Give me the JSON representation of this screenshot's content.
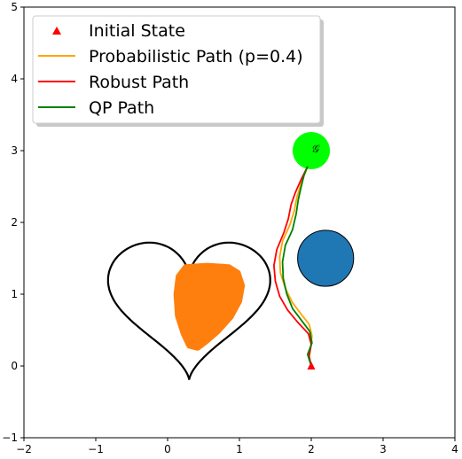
{
  "chart_data": {
    "type": "line",
    "xlim": [
      -2,
      4
    ],
    "ylim": [
      -1,
      5
    ],
    "x_ticks": [
      -2,
      -1,
      0,
      1,
      2,
      3,
      4
    ],
    "y_ticks": [
      -1,
      0,
      1,
      2,
      3,
      4,
      5
    ],
    "x_tick_labels": [
      "−2",
      "−1",
      "0",
      "1",
      "2",
      "3",
      "4"
    ],
    "y_tick_labels": [
      "−1",
      "0",
      "1",
      "2",
      "3",
      "4",
      "5"
    ],
    "grid": false,
    "legend_position": "top-left",
    "goal_label": "𝒢",
    "initial_state": {
      "name": "Initial State",
      "x": 2.0,
      "y": 0.0,
      "color": "#ff0000",
      "marker": "triangle"
    },
    "series": [
      {
        "name": "Probabilistic Path (p=0.4)",
        "color": "#ffa500",
        "points": [
          [
            2.0,
            0.0
          ],
          [
            1.97,
            0.12
          ],
          [
            1.99,
            0.25
          ],
          [
            2.01,
            0.42
          ],
          [
            1.97,
            0.58
          ],
          [
            1.86,
            0.72
          ],
          [
            1.74,
            0.88
          ],
          [
            1.64,
            1.08
          ],
          [
            1.57,
            1.3
          ],
          [
            1.56,
            1.52
          ],
          [
            1.6,
            1.74
          ],
          [
            1.7,
            1.96
          ],
          [
            1.76,
            2.15
          ],
          [
            1.8,
            2.35
          ],
          [
            1.86,
            2.55
          ],
          [
            1.95,
            2.78
          ]
        ]
      },
      {
        "name": "Robust Path",
        "color": "#ff0000",
        "points": [
          [
            2.0,
            0.0
          ],
          [
            1.97,
            0.14
          ],
          [
            2.0,
            0.3
          ],
          [
            1.96,
            0.45
          ],
          [
            1.82,
            0.6
          ],
          [
            1.67,
            0.78
          ],
          [
            1.56,
            0.97
          ],
          [
            1.5,
            1.18
          ],
          [
            1.48,
            1.4
          ],
          [
            1.52,
            1.62
          ],
          [
            1.62,
            1.86
          ],
          [
            1.68,
            2.05
          ],
          [
            1.72,
            2.25
          ],
          [
            1.78,
            2.42
          ],
          [
            1.86,
            2.6
          ],
          [
            1.95,
            2.78
          ]
        ]
      },
      {
        "name": "QP Path",
        "color": "#008000",
        "points": [
          [
            2.0,
            0.0
          ],
          [
            1.95,
            0.16
          ],
          [
            2.01,
            0.32
          ],
          [
            1.98,
            0.48
          ],
          [
            1.86,
            0.64
          ],
          [
            1.74,
            0.8
          ],
          [
            1.66,
            1.0
          ],
          [
            1.61,
            1.22
          ],
          [
            1.6,
            1.45
          ],
          [
            1.64,
            1.68
          ],
          [
            1.74,
            1.9
          ],
          [
            1.79,
            2.12
          ],
          [
            1.82,
            2.32
          ],
          [
            1.86,
            2.5
          ],
          [
            1.9,
            2.66
          ],
          [
            1.95,
            2.78
          ]
        ]
      }
    ],
    "obstacles": [
      {
        "name": "heart-obstacle",
        "type": "heart",
        "center": [
          0.3,
          0.93
        ],
        "scale": 0.105,
        "line_color": "#000000"
      },
      {
        "name": "uncertain-orange-region",
        "type": "blob",
        "color": "#ff7f0e",
        "points": [
          [
            0.25,
            1.38
          ],
          [
            0.55,
            1.4
          ],
          [
            0.85,
            1.38
          ],
          [
            0.98,
            1.3
          ],
          [
            1.04,
            1.12
          ],
          [
            1.0,
            0.9
          ],
          [
            0.88,
            0.68
          ],
          [
            0.7,
            0.48
          ],
          [
            0.55,
            0.35
          ],
          [
            0.42,
            0.25
          ],
          [
            0.3,
            0.28
          ],
          [
            0.22,
            0.45
          ],
          [
            0.14,
            0.7
          ],
          [
            0.12,
            1.0
          ],
          [
            0.15,
            1.25
          ]
        ]
      },
      {
        "name": "circle-obstacle",
        "type": "circle",
        "center": [
          2.2,
          1.5
        ],
        "radius": 0.39,
        "color": "#1f77b4"
      },
      {
        "name": "goal-region",
        "type": "circle",
        "center": [
          2.0,
          3.0
        ],
        "radius": 0.26,
        "color": "#00ff00"
      }
    ]
  }
}
